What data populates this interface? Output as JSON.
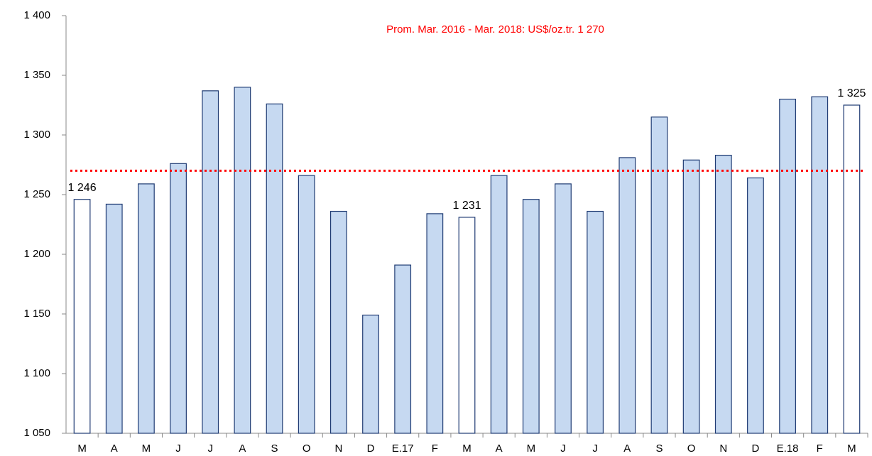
{
  "chart_data": {
    "type": "bar",
    "categories": [
      "M",
      "A",
      "M",
      "J",
      "J",
      "A",
      "S",
      "O",
      "N",
      "D",
      "E.17",
      "F",
      "M",
      "A",
      "M",
      "J",
      "J",
      "A",
      "S",
      "O",
      "N",
      "D",
      "E.18",
      "F",
      "M"
    ],
    "values": [
      1246,
      1242,
      1259,
      1276,
      1337,
      1340,
      1326,
      1266,
      1236,
      1149,
      1191,
      1234,
      1231,
      1266,
      1246,
      1259,
      1236,
      1281,
      1315,
      1279,
      1283,
      1264,
      1330,
      1332,
      1325
    ],
    "value_labels": [
      "1 246",
      null,
      null,
      null,
      null,
      null,
      null,
      null,
      null,
      null,
      null,
      null,
      "1 231",
      null,
      null,
      null,
      null,
      null,
      null,
      null,
      null,
      null,
      null,
      null,
      "1 325"
    ],
    "colors": [
      "#ffffff",
      "#c6d9f1",
      "#c6d9f1",
      "#c6d9f1",
      "#c6d9f1",
      "#c6d9f1",
      "#c6d9f1",
      "#c6d9f1",
      "#c6d9f1",
      "#c6d9f1",
      "#c6d9f1",
      "#c6d9f1",
      "#ffffff",
      "#c6d9f1",
      "#c6d9f1",
      "#c6d9f1",
      "#c6d9f1",
      "#c6d9f1",
      "#c6d9f1",
      "#c6d9f1",
      "#c6d9f1",
      "#c6d9f1",
      "#c6d9f1",
      "#c6d9f1",
      "#ffffff"
    ],
    "edge_color": "#1f3b73",
    "ylim": [
      1050,
      1400
    ],
    "yticks": [
      {
        "value": 1050,
        "label": "1 050"
      },
      {
        "value": 1100,
        "label": "1 100"
      },
      {
        "value": 1150,
        "label": "1 150"
      },
      {
        "value": 1200,
        "label": "1 200"
      },
      {
        "value": 1250,
        "label": "1 250"
      },
      {
        "value": 1300,
        "label": "1 300"
      },
      {
        "value": 1350,
        "label": "1 350"
      },
      {
        "value": 1400,
        "label": "1 400"
      }
    ],
    "grid": false,
    "reference": {
      "value": 1270,
      "label": "Prom. Mar. 2016 - Mar. 2018: US$/oz.tr. 1 270",
      "color": "#ff0000"
    }
  }
}
